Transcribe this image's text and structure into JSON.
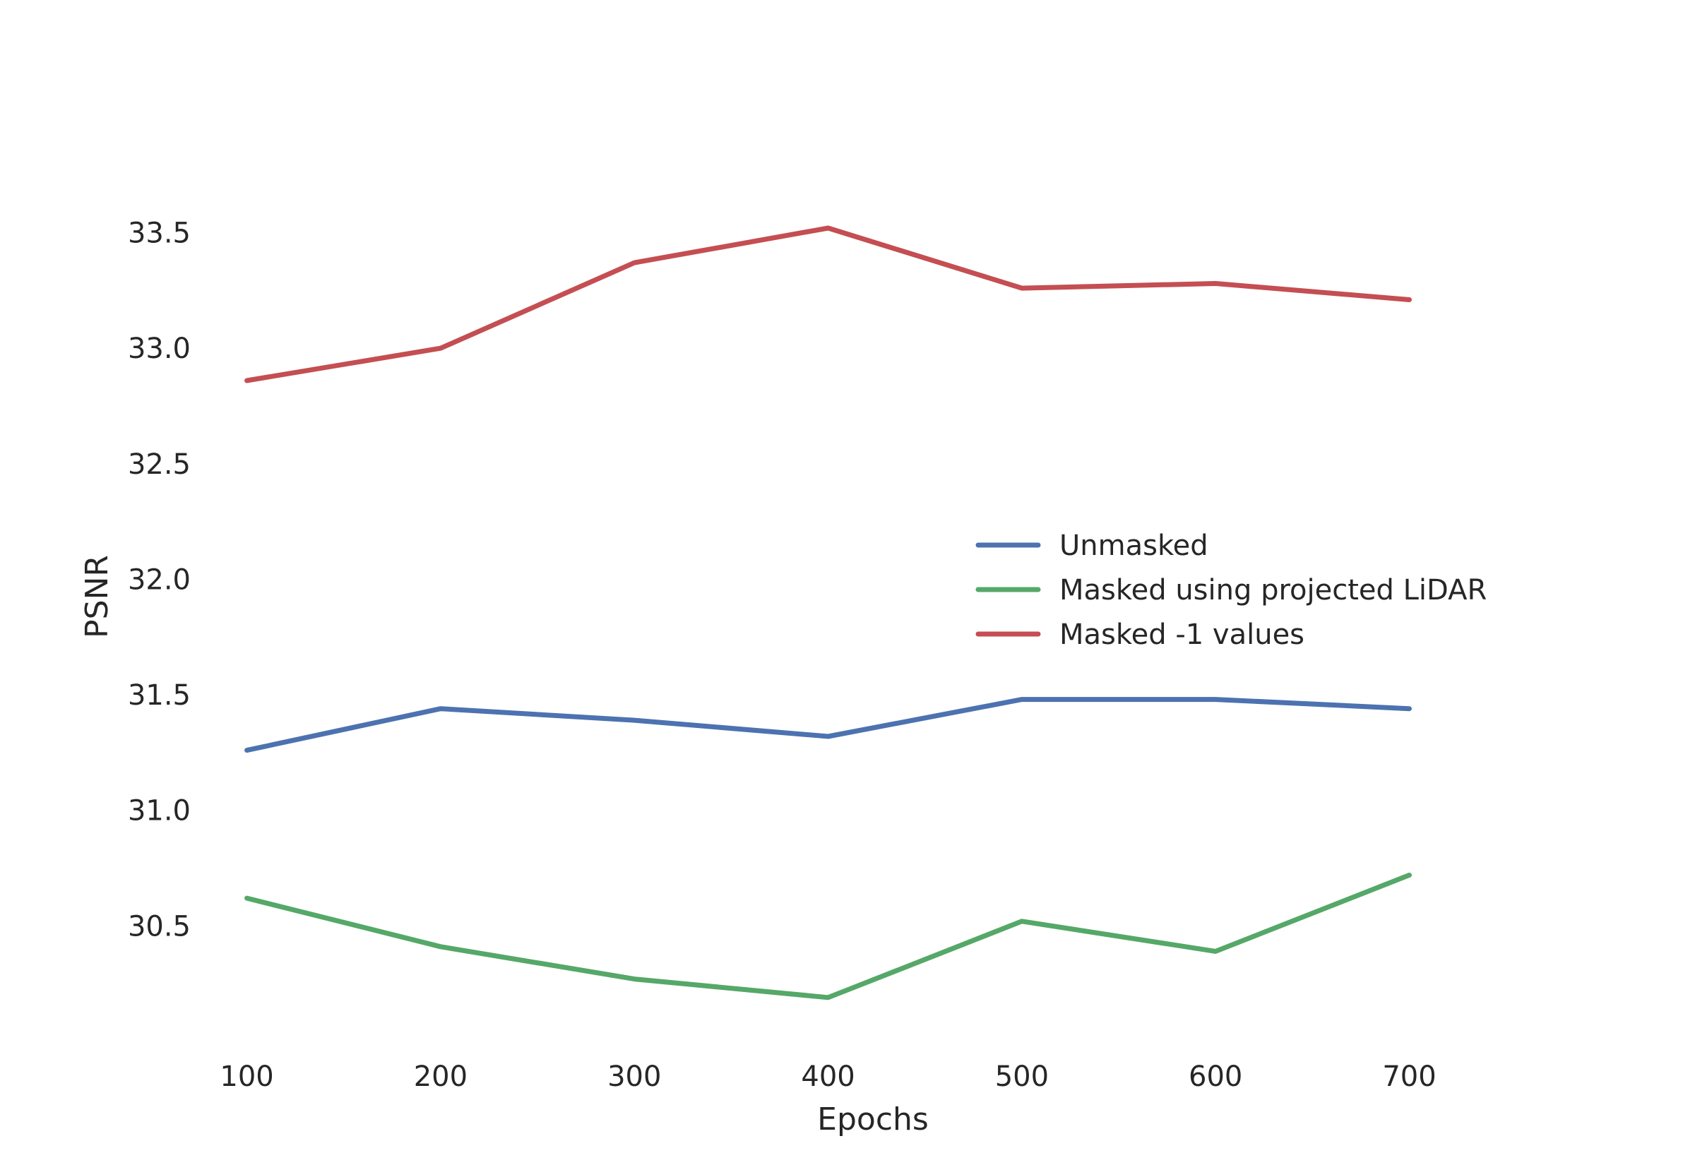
{
  "chart_data": {
    "type": "line",
    "title": "",
    "xlabel": "Epochs",
    "ylabel": "PSNR",
    "x": [
      100,
      200,
      300,
      400,
      500,
      600,
      700
    ],
    "xticks": [
      "100",
      "200",
      "300",
      "400",
      "500",
      "600",
      "700"
    ],
    "yticks": [
      "30.5",
      "31.0",
      "31.5",
      "32.0",
      "32.5",
      "33.0",
      "33.5"
    ],
    "xlim": [
      40,
      780
    ],
    "ylim": [
      30.0,
      33.85
    ],
    "grid": false,
    "legend_position": "center-right",
    "series": [
      {
        "name": "Unmasked",
        "color": "#4c72b0",
        "values": [
          31.26,
          31.44,
          31.39,
          31.32,
          31.48,
          31.48,
          31.44
        ]
      },
      {
        "name": "Masked using projected LiDAR",
        "color": "#55a868",
        "values": [
          30.62,
          30.41,
          30.27,
          30.19,
          30.52,
          30.39,
          30.72
        ]
      },
      {
        "name": "Masked -1 values",
        "color": "#c44e52",
        "values": [
          32.86,
          33.0,
          33.37,
          33.52,
          33.26,
          33.28,
          33.21
        ]
      }
    ]
  }
}
